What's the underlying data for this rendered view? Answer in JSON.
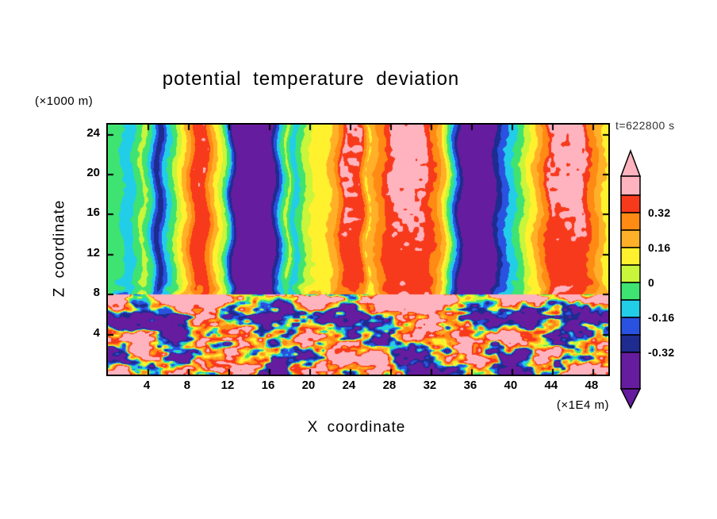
{
  "chart_data": {
    "type": "heatmap",
    "title": "potential temperature deviation",
    "time_label": "t=622800 s",
    "xlabel": "X coordinate",
    "ylabel": "Z coordinate",
    "x_unit_label": "(×1E4 m)",
    "y_unit_label": "(×1000 m)",
    "x_range": [
      0,
      49.5
    ],
    "z_range": [
      0,
      25
    ],
    "x_ticks": [
      4,
      8,
      12,
      16,
      20,
      24,
      28,
      32,
      36,
      40,
      44,
      48
    ],
    "z_ticks": [
      4,
      8,
      12,
      16,
      20,
      24
    ],
    "grid": false,
    "legend_position": "right-colorbar",
    "colorbar": {
      "labels": [
        "0.32",
        "0.16",
        "0",
        "-0.16",
        "-0.32"
      ],
      "level_boundaries": [
        0.4,
        0.32,
        0.24,
        0.16,
        0.08,
        0,
        -0.08,
        -0.16,
        -0.24,
        -0.32
      ],
      "colors_top_to_bottom": [
        "#FFB3BE",
        "#F83A1C",
        "#FF8A14",
        "#FFB028",
        "#FFF12E",
        "#C9F53B",
        "#3FE372",
        "#22CDE8",
        "#2A52E0",
        "#1E2B8F",
        "#661C9E"
      ],
      "open_ended_arrows": true
    },
    "field": {
      "boundary_layer_top": 8,
      "upper_region": "quasi-vertical wave bands from z=8 to domain top; warm (red) columns capped by pink maxima near the top centre and right, deep purple minima columns near x=13-16 and x=35.5-38",
      "lower_region": "chaotic convective turbulence below z=8 with large pink (>0.4) and purple (<-0.32) patches separated by thin rainbow filaments and a pink capping layer near z=8",
      "value_range": [
        -0.5,
        0.5
      ],
      "upper_band_profile_points": [
        [
          0,
          -0.05
        ],
        [
          1.2,
          -0.06
        ],
        [
          2,
          -0.14
        ],
        [
          2.8,
          -0.05
        ],
        [
          3.5,
          0.03
        ],
        [
          4.3,
          -0.1
        ],
        [
          5,
          -0.31
        ],
        [
          5.7,
          -0.13
        ],
        [
          6.4,
          -0.04
        ],
        [
          7.1,
          0.09
        ],
        [
          7.9,
          0.22
        ],
        [
          8.5,
          0.35
        ],
        [
          9.7,
          0.35
        ],
        [
          10.4,
          0.2
        ],
        [
          11,
          0.1
        ],
        [
          11.7,
          -0.03
        ],
        [
          12.3,
          -0.26
        ],
        [
          12.9,
          -0.46
        ],
        [
          15.9,
          -0.46
        ],
        [
          16.6,
          -0.27
        ],
        [
          17.2,
          -0.1
        ],
        [
          17.8,
          0.03
        ],
        [
          18.4,
          -0.13
        ],
        [
          19.1,
          -0.03
        ],
        [
          19.8,
          0.06
        ],
        [
          20.7,
          0.13
        ],
        [
          21.7,
          0.14
        ],
        [
          22.5,
          0.22
        ],
        [
          23.3,
          0.37
        ],
        [
          25,
          0.36
        ],
        [
          25.7,
          0.15
        ],
        [
          26.5,
          0.24
        ],
        [
          27.4,
          0.33
        ],
        [
          28.2,
          0.38
        ],
        [
          31.2,
          0.38
        ],
        [
          32.3,
          0.31
        ],
        [
          33.1,
          0.19
        ],
        [
          33.7,
          0.01
        ],
        [
          34.2,
          -0.14
        ],
        [
          34.8,
          -0.31
        ],
        [
          35.5,
          -0.46
        ],
        [
          37.7,
          -0.46
        ],
        [
          38.4,
          -0.29
        ],
        [
          39.1,
          -0.19
        ],
        [
          39.9,
          -0.11
        ],
        [
          40.7,
          -0.03
        ],
        [
          41.7,
          0.1
        ],
        [
          42.7,
          0.23
        ],
        [
          43.7,
          0.37
        ],
        [
          47,
          0.38
        ],
        [
          48.1,
          0.27
        ],
        [
          49,
          0.16
        ],
        [
          49.5,
          0.12
        ]
      ]
    }
  }
}
